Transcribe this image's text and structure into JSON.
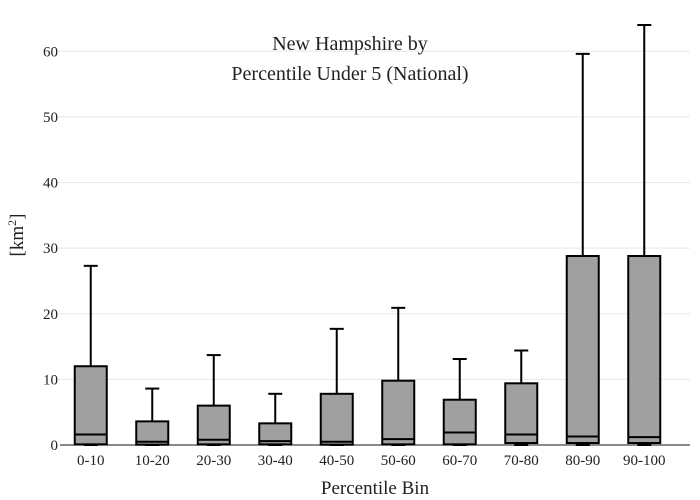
{
  "chart_data": {
    "type": "box",
    "title_lines": [
      "New Hampshire  by",
      "Percentile Under 5 (National)"
    ],
    "xlabel": "Percentile Bin",
    "ylabel_base": "[km",
    "ylabel_sup": "2",
    "ylabel_end": "]",
    "ylim": [
      0,
      64
    ],
    "yticks": [
      0,
      10,
      20,
      30,
      40,
      50,
      60
    ],
    "grid": true,
    "categories": [
      "0-10",
      "10-20",
      "20-30",
      "30-40",
      "40-50",
      "50-60",
      "60-70",
      "70-80",
      "80-90",
      "90-100"
    ],
    "boxes": [
      {
        "min": 0,
        "q1": 0.1,
        "median": 1.6,
        "q3": 12.0,
        "max": 27.3
      },
      {
        "min": 0,
        "q1": 0.05,
        "median": 0.5,
        "q3": 3.6,
        "max": 8.6
      },
      {
        "min": 0,
        "q1": 0.1,
        "median": 0.8,
        "q3": 6.0,
        "max": 13.7
      },
      {
        "min": 0,
        "q1": 0.1,
        "median": 0.6,
        "q3": 3.3,
        "max": 7.8
      },
      {
        "min": 0,
        "q1": 0.05,
        "median": 0.5,
        "q3": 7.8,
        "max": 17.7
      },
      {
        "min": 0,
        "q1": 0.1,
        "median": 0.9,
        "q3": 9.8,
        "max": 20.9
      },
      {
        "min": 0,
        "q1": 0.1,
        "median": 1.9,
        "q3": 6.9,
        "max": 13.1
      },
      {
        "min": 0,
        "q1": 0.3,
        "median": 1.6,
        "q3": 9.4,
        "max": 14.4
      },
      {
        "min": 0,
        "q1": 0.3,
        "median": 1.3,
        "q3": 28.8,
        "max": 59.6
      },
      {
        "min": 0,
        "q1": 0.3,
        "median": 1.2,
        "q3": 28.8,
        "max": 64.0
      }
    ]
  }
}
